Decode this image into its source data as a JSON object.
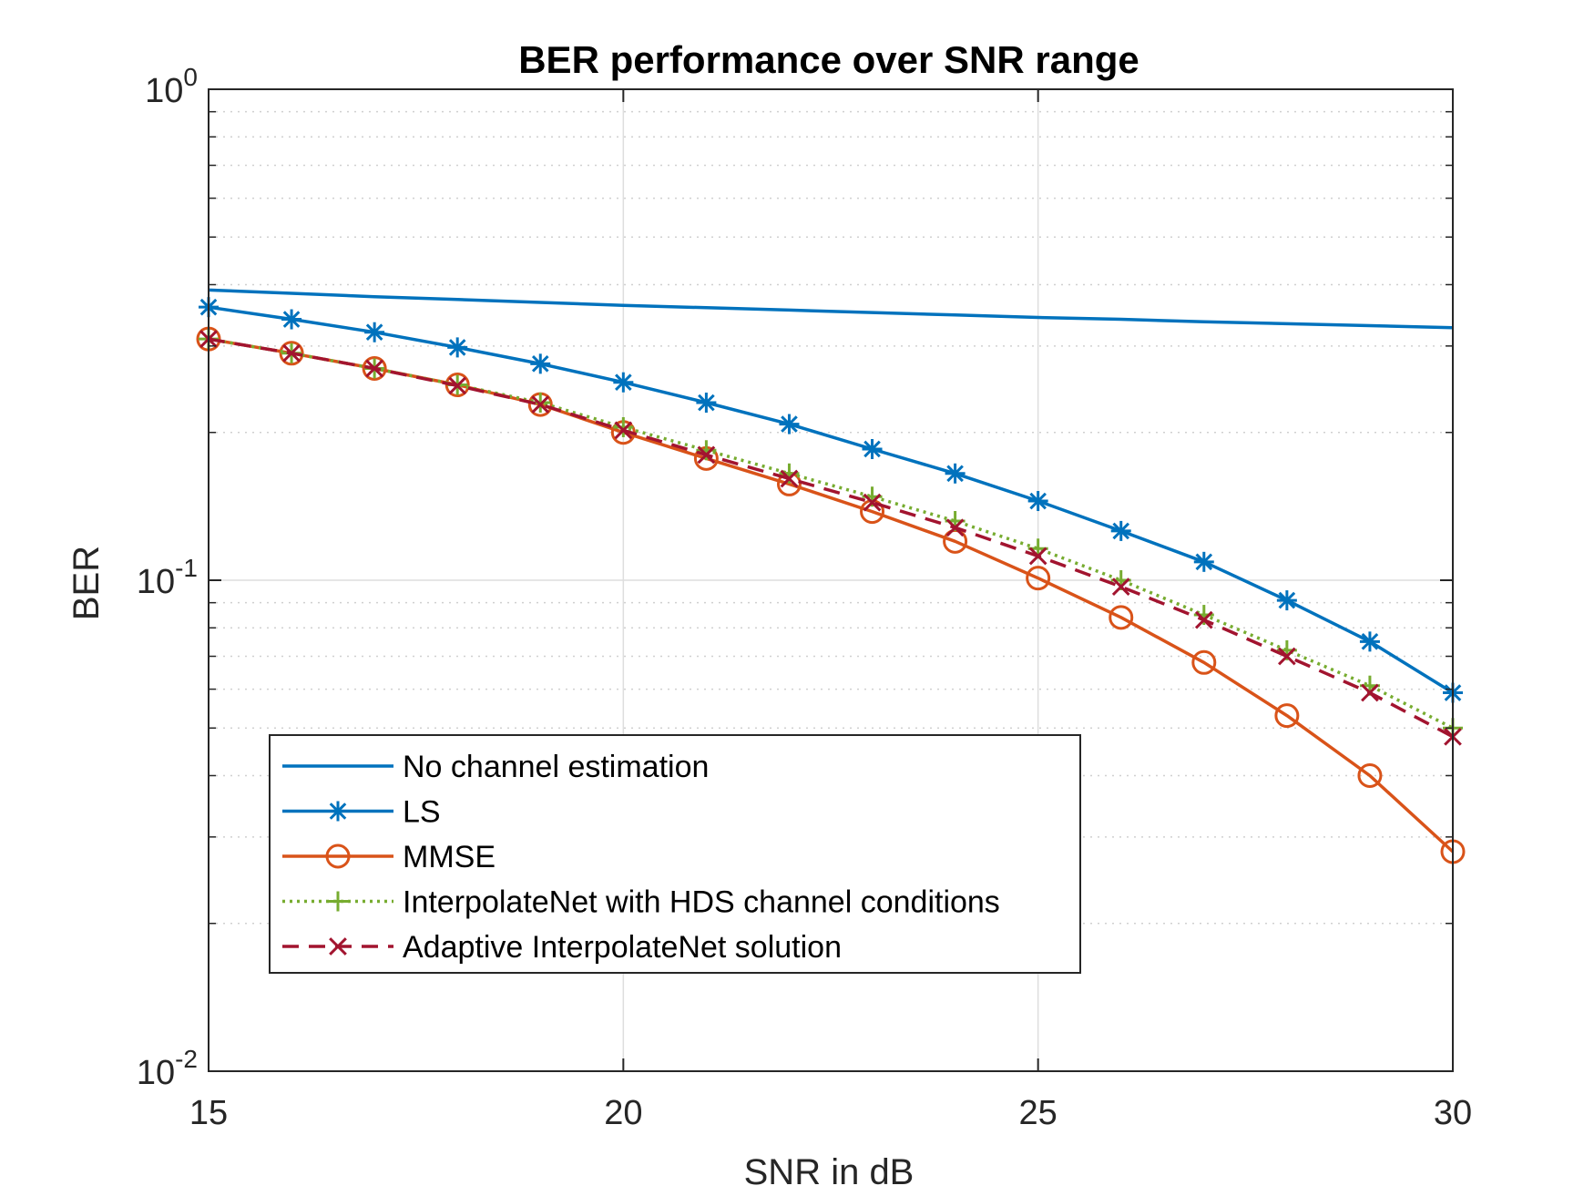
{
  "chart_data": {
    "type": "line",
    "title": "BER performance over SNR range",
    "xlabel": "SNR in dB",
    "ylabel": "BER",
    "xlim": [
      15,
      30
    ],
    "ylim": [
      0.01,
      1
    ],
    "yscale": "log",
    "grid": true,
    "legend_position": "bottom-left",
    "x_ticks": [
      15,
      20,
      25,
      30
    ],
    "y_ticks": [
      {
        "value": 1,
        "base": "10",
        "exp": "0"
      },
      {
        "value": 0.1,
        "base": "10",
        "exp": "-1"
      },
      {
        "value": 0.01,
        "base": "10",
        "exp": "-2"
      }
    ],
    "x": [
      15,
      16,
      17,
      18,
      19,
      20,
      21,
      22,
      23,
      24,
      25,
      26,
      27,
      28,
      29,
      30
    ],
    "series": [
      {
        "name": "No channel estimation",
        "color": "#0072BD",
        "dash": "solid",
        "marker": "none",
        "values": [
          0.39,
          0.384,
          0.378,
          0.373,
          0.368,
          0.363,
          0.359,
          0.355,
          0.351,
          0.347,
          0.343,
          0.34,
          0.336,
          0.333,
          0.33,
          0.327
        ]
      },
      {
        "name": "LS",
        "color": "#0072BD",
        "dash": "solid",
        "marker": "asterisk",
        "values": [
          0.36,
          0.34,
          0.32,
          0.298,
          0.276,
          0.253,
          0.23,
          0.208,
          0.185,
          0.165,
          0.145,
          0.126,
          0.109,
          0.091,
          0.075,
          0.059
        ]
      },
      {
        "name": "MMSE",
        "color": "#D95319",
        "dash": "solid",
        "marker": "circle",
        "values": [
          0.31,
          0.29,
          0.27,
          0.25,
          0.228,
          0.2,
          0.177,
          0.157,
          0.138,
          0.12,
          0.101,
          0.084,
          0.068,
          0.053,
          0.04,
          0.028
        ]
      },
      {
        "name": "InterpolateNet with HDS channel conditions",
        "color": "#77AC30",
        "dash": "dotted",
        "marker": "plus",
        "values": [
          0.31,
          0.29,
          0.27,
          0.25,
          0.23,
          0.205,
          0.184,
          0.165,
          0.148,
          0.132,
          0.116,
          0.1,
          0.085,
          0.072,
          0.061,
          0.05
        ]
      },
      {
        "name": "Adaptive InterpolateNet solution",
        "color": "#A2142F",
        "dash": "dashed",
        "marker": "x",
        "values": [
          0.31,
          0.29,
          0.27,
          0.249,
          0.228,
          0.202,
          0.18,
          0.161,
          0.144,
          0.128,
          0.112,
          0.097,
          0.083,
          0.07,
          0.059,
          0.048
        ]
      }
    ]
  }
}
